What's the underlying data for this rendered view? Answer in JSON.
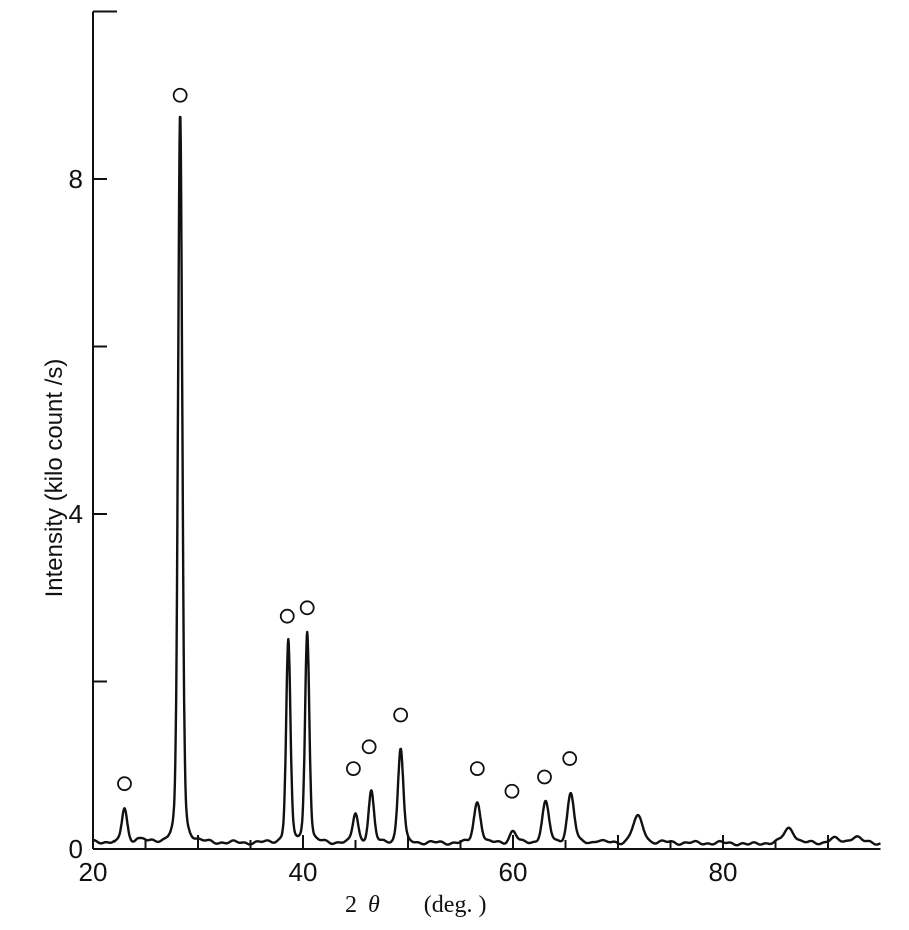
{
  "chart_data": {
    "type": "line",
    "title": "",
    "xlabel": "2θ",
    "xlabel_symbol": "2",
    "xlabel_theta": "θ",
    "xlabel_unit": "(deg. )",
    "ylabel": "Intensity (kilo count /s)",
    "xlim": [
      20,
      95
    ],
    "ylim": [
      0,
      10
    ],
    "x_ticks_labeled": [
      20,
      40,
      60,
      80
    ],
    "x_tick_labels": [
      "20",
      "40",
      "60",
      "80"
    ],
    "y_ticks_labeled": [
      0,
      4,
      8
    ],
    "y_tick_labels": [
      "0",
      "4",
      "8"
    ],
    "grid": false,
    "series": [
      {
        "peaks": [
          {
            "x": 23.0,
            "y": 0.48
          },
          {
            "x": 24.2,
            "y": 0.12
          },
          {
            "x": 24.8,
            "y": 0.1
          },
          {
            "x": 28.3,
            "y": 8.78
          },
          {
            "x": 38.6,
            "y": 2.48
          },
          {
            "x": 40.4,
            "y": 2.6
          },
          {
            "x": 45.0,
            "y": 0.42
          },
          {
            "x": 46.5,
            "y": 0.68
          },
          {
            "x": 49.3,
            "y": 1.2
          },
          {
            "x": 56.6,
            "y": 0.56
          },
          {
            "x": 60.0,
            "y": 0.21
          },
          {
            "x": 63.1,
            "y": 0.55
          },
          {
            "x": 65.5,
            "y": 0.66
          },
          {
            "x": 68.1,
            "y": 0.1
          },
          {
            "x": 71.9,
            "y": 0.38
          },
          {
            "x": 75.0,
            "y": 0.08
          },
          {
            "x": 77.0,
            "y": 0.07
          },
          {
            "x": 82.5,
            "y": 0.05
          },
          {
            "x": 86.3,
            "y": 0.25
          },
          {
            "x": 90.5,
            "y": 0.12
          },
          {
            "x": 92.6,
            "y": 0.15
          }
        ]
      }
    ],
    "markers": [
      {
        "x": 23.0,
        "y": 0.78
      },
      {
        "x": 28.3,
        "y": 9.0
      },
      {
        "x": 38.5,
        "y": 2.78
      },
      {
        "x": 40.4,
        "y": 2.88
      },
      {
        "x": 44.8,
        "y": 0.96
      },
      {
        "x": 46.3,
        "y": 1.22
      },
      {
        "x": 49.3,
        "y": 1.6
      },
      {
        "x": 56.6,
        "y": 0.96
      },
      {
        "x": 59.9,
        "y": 0.69
      },
      {
        "x": 63.0,
        "y": 0.86
      },
      {
        "x": 65.4,
        "y": 1.08
      }
    ]
  }
}
